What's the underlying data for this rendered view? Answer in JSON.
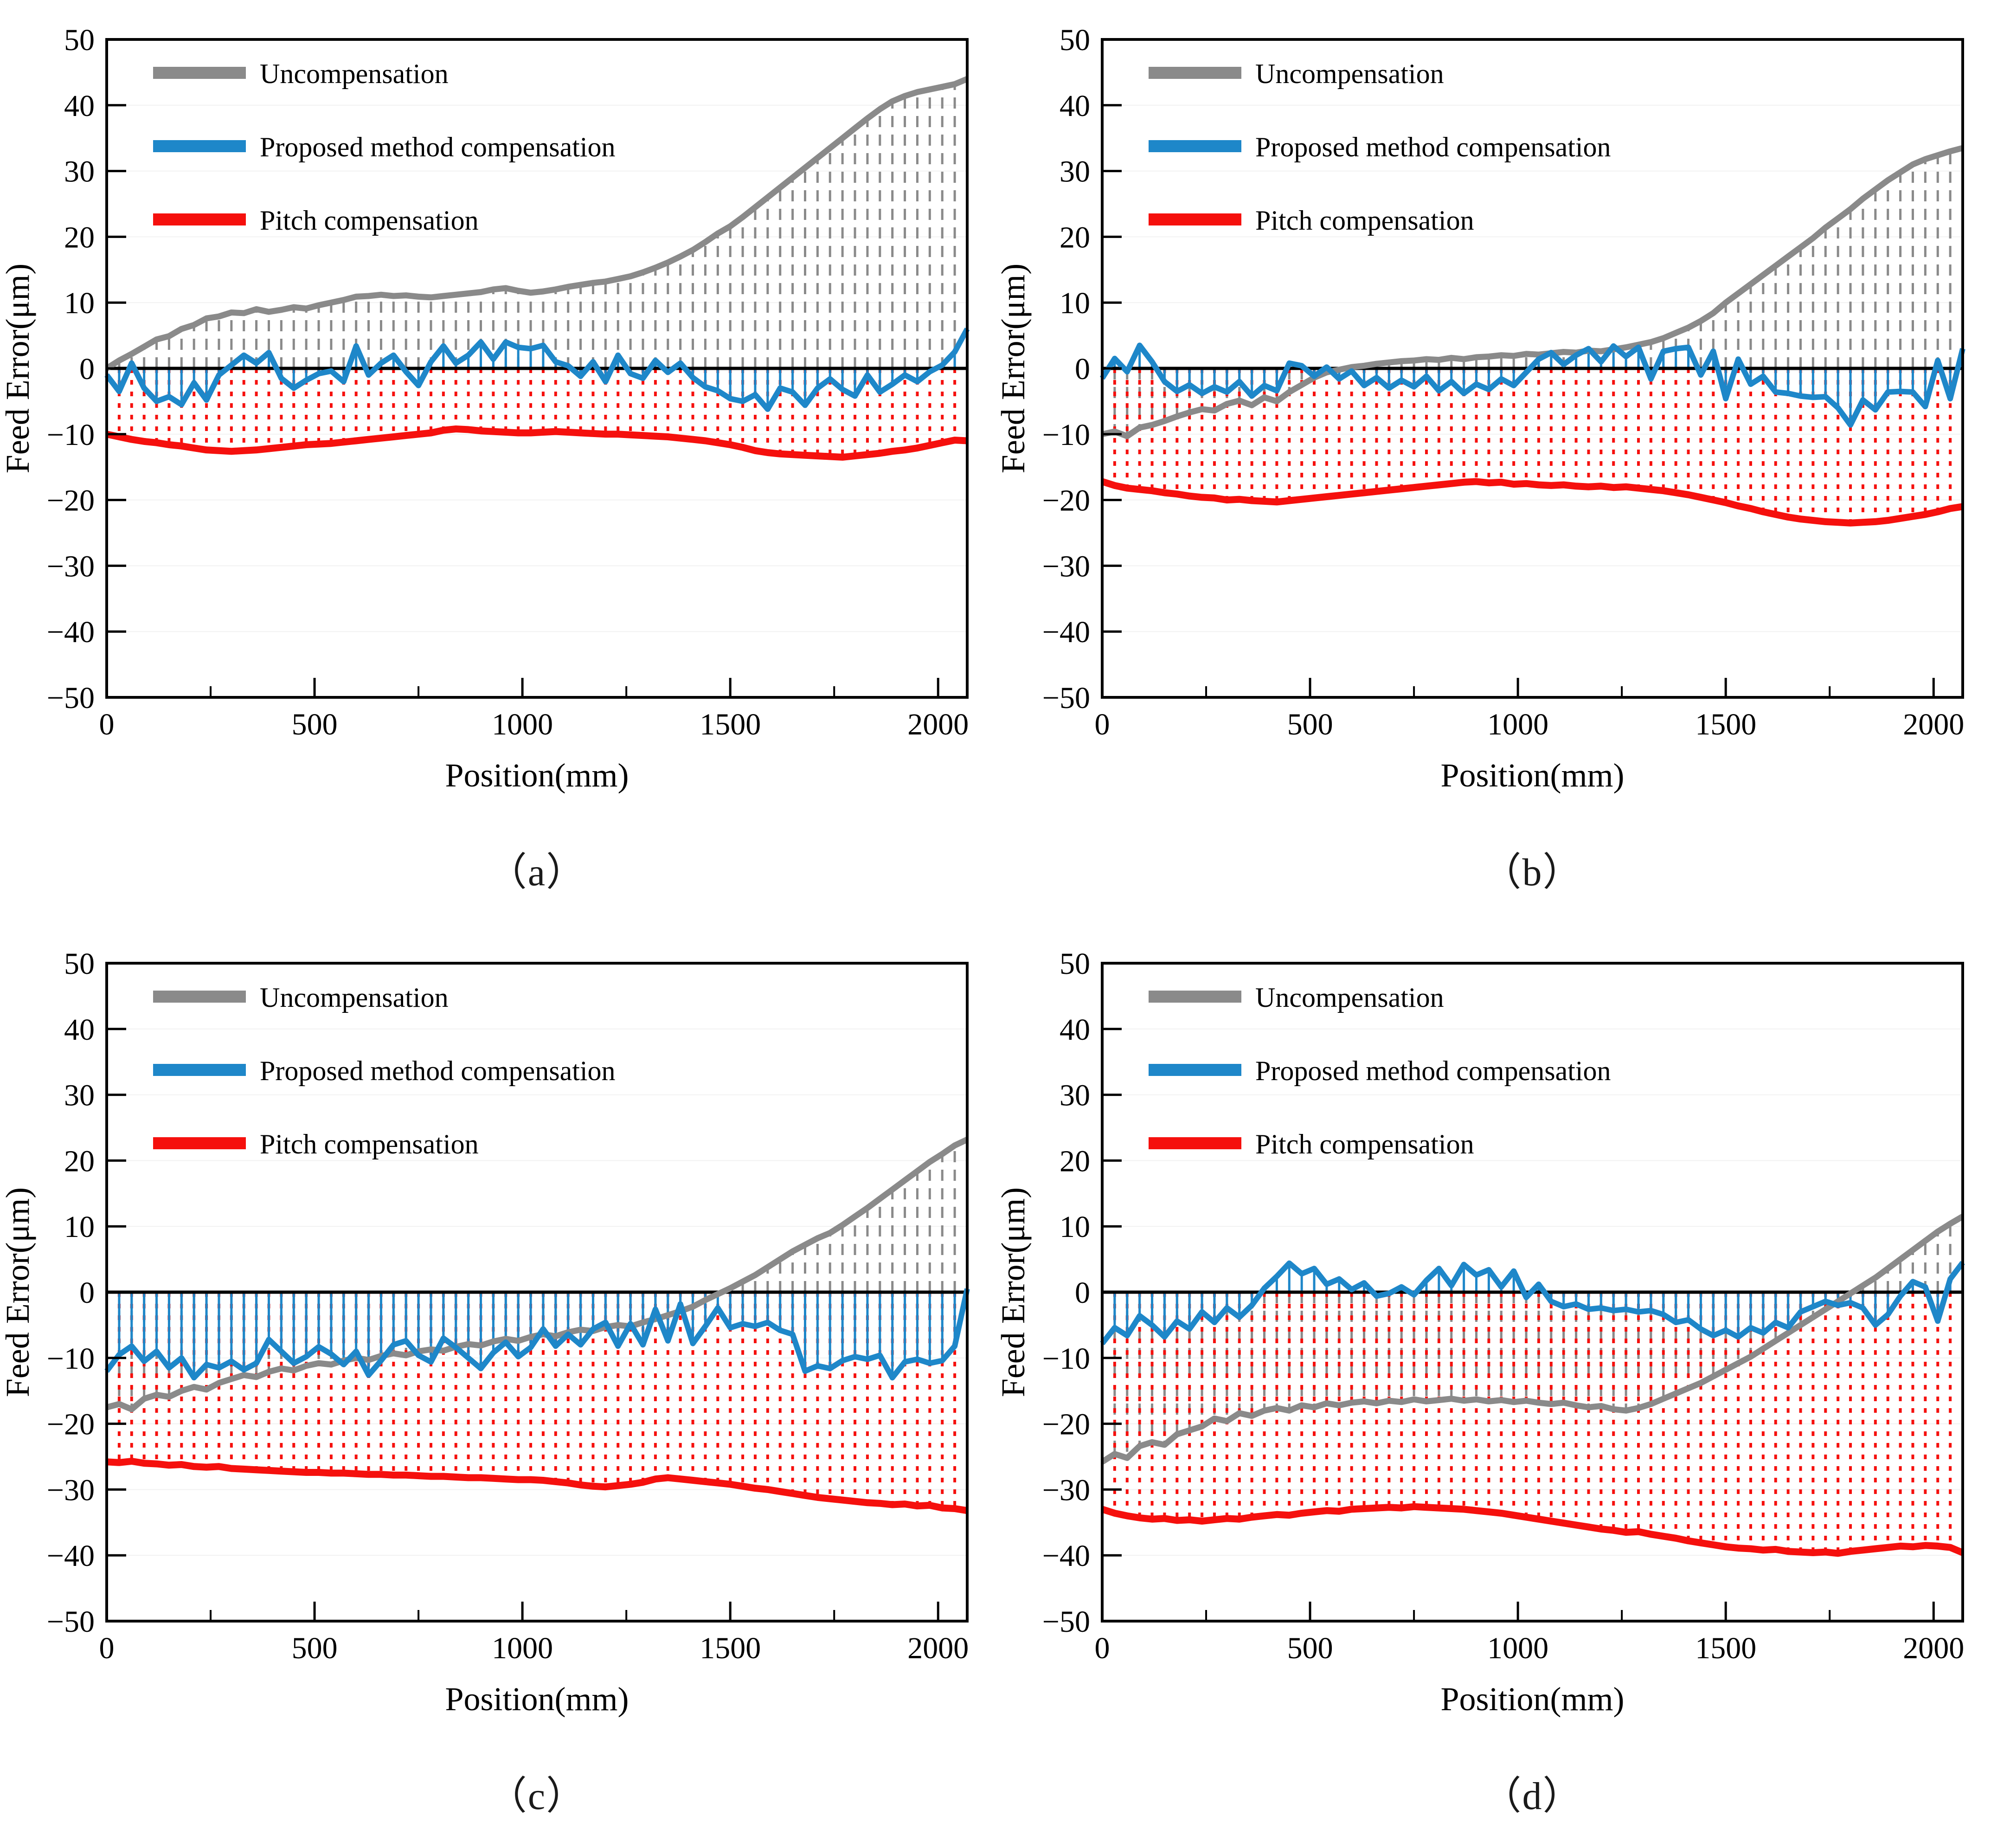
{
  "page": {
    "background": "#ffffff"
  },
  "colors": {
    "uncompensation": "#8A8A8A",
    "proposed": "#1E87C9",
    "pitch": "#F5100D",
    "axis": "#000000",
    "zero_line": "#000000",
    "grid": "#F2F2F2"
  },
  "legend": [
    {
      "label": "Uncompensation",
      "series": "uncompensation"
    },
    {
      "label": "Proposed method compensation",
      "series": "proposed"
    },
    {
      "label": "Pitch compensation",
      "series": "pitch"
    }
  ],
  "axes": {
    "xlabel": "Position(mm)",
    "ylabel": "Feed Error(μm)",
    "xlim": [
      0,
      2070
    ],
    "ylim": [
      -50,
      50
    ],
    "xticks": [
      0,
      500,
      1000,
      1500,
      2000
    ],
    "xminorticks": [
      250,
      750,
      1250,
      1750
    ],
    "yticks": [
      -50,
      -40,
      -30,
      -20,
      -10,
      0,
      10,
      20,
      30,
      40,
      50
    ],
    "grid": "faint-horizontal",
    "legend_position": "top-left-inside"
  },
  "x_mm": [
    0,
    30,
    60,
    90,
    120,
    150,
    180,
    210,
    240,
    270,
    300,
    330,
    360,
    390,
    420,
    450,
    480,
    510,
    540,
    570,
    600,
    630,
    660,
    690,
    720,
    750,
    780,
    810,
    840,
    870,
    900,
    930,
    960,
    990,
    1020,
    1050,
    1080,
    1110,
    1140,
    1170,
    1200,
    1230,
    1260,
    1290,
    1320,
    1350,
    1380,
    1410,
    1440,
    1470,
    1500,
    1530,
    1560,
    1590,
    1620,
    1650,
    1680,
    1710,
    1740,
    1770,
    1800,
    1830,
    1860,
    1890,
    1920,
    1950,
    1980,
    2010,
    2040,
    2070
  ],
  "chart_data": [
    {
      "type": "line",
      "caption": "（a）",
      "drop_lines": {
        "uncompensation": "dashed",
        "proposed": "solid",
        "pitch": "dotted"
      },
      "series": {
        "uncompensation": [
          0,
          1.2,
          2.2,
          3.3,
          4.4,
          4.9,
          6,
          6.6,
          7.6,
          7.9,
          8.5,
          8.4,
          9,
          8.6,
          8.9,
          9.3,
          9.1,
          9.6,
          10,
          10.4,
          10.9,
          11,
          11.2,
          11,
          11.1,
          10.9,
          10.8,
          11,
          11.2,
          11.4,
          11.6,
          12,
          12.2,
          11.8,
          11.5,
          11.7,
          12,
          12.4,
          12.7,
          13,
          13.2,
          13.6,
          14,
          14.6,
          15.3,
          16.1,
          17,
          18,
          19.2,
          20.5,
          21.6,
          23,
          24.5,
          26,
          27.5,
          29,
          30.5,
          32,
          33.5,
          35,
          36.5,
          38,
          39.4,
          40.6,
          41.4,
          42,
          42.4,
          42.8,
          43.2,
          44
        ],
        "proposed": [
          -1,
          -3.5,
          0.8,
          -3,
          -5,
          -4.3,
          -5.5,
          -2.2,
          -4.8,
          -1,
          0.5,
          2,
          0.8,
          2.4,
          -1.5,
          -3,
          -1.8,
          -0.8,
          -0.4,
          -2,
          3.4,
          -1,
          0.8,
          2,
          -0.5,
          -2.6,
          1,
          3.4,
          0.8,
          2,
          4,
          1.4,
          4,
          3.2,
          3,
          3.5,
          1,
          0.4,
          -1.2,
          1,
          -2,
          2,
          -0.8,
          -1.5,
          1.2,
          -0.6,
          0.8,
          -1.4,
          -2.8,
          -3.4,
          -4.6,
          -5,
          -4,
          -6.2,
          -3,
          -3.6,
          -5.6,
          -3,
          -1.6,
          -3.2,
          -4.2,
          -1,
          -3.6,
          -2.4,
          -1,
          -2,
          -0.5,
          0.5,
          2.5,
          6
        ],
        "pitch": [
          -10,
          -10.4,
          -10.8,
          -11.1,
          -11.3,
          -11.6,
          -11.8,
          -12.1,
          -12.4,
          -12.5,
          -12.6,
          -12.5,
          -12.4,
          -12.2,
          -12,
          -11.8,
          -11.6,
          -11.5,
          -11.4,
          -11.2,
          -11,
          -10.8,
          -10.6,
          -10.4,
          -10.2,
          -10,
          -9.8,
          -9.4,
          -9.2,
          -9.3,
          -9.5,
          -9.6,
          -9.7,
          -9.8,
          -9.8,
          -9.7,
          -9.6,
          -9.7,
          -9.8,
          -9.9,
          -10,
          -10,
          -10.1,
          -10.2,
          -10.3,
          -10.4,
          -10.6,
          -10.8,
          -11,
          -11.3,
          -11.6,
          -12,
          -12.5,
          -12.8,
          -13,
          -13.1,
          -13.2,
          -13.3,
          -13.4,
          -13.5,
          -13.3,
          -13.1,
          -12.9,
          -12.6,
          -12.4,
          -12.1,
          -11.7,
          -11.3,
          -10.9,
          -11
        ]
      }
    },
    {
      "type": "line",
      "caption": "（b）",
      "drop_lines": {
        "uncompensation": "dashed",
        "proposed": "solid",
        "pitch": "dotted"
      },
      "series": {
        "uncompensation": [
          -10,
          -9.6,
          -10.3,
          -9,
          -8.6,
          -8,
          -7.3,
          -6.7,
          -6.2,
          -6.4,
          -5.4,
          -4.9,
          -5.6,
          -4.4,
          -5,
          -3.6,
          -2.5,
          -1.4,
          -0.6,
          -0.2,
          0.2,
          0.4,
          0.7,
          0.9,
          1.1,
          1.2,
          1.4,
          1.3,
          1.6,
          1.4,
          1.7,
          1.8,
          2,
          1.9,
          2.2,
          2.1,
          2.3,
          2.5,
          2.4,
          2.7,
          2.6,
          2.9,
          3.2,
          3.6,
          4,
          4.6,
          5.4,
          6.2,
          7.2,
          8.4,
          10,
          11.4,
          12.8,
          14.2,
          15.6,
          17,
          18.4,
          19.8,
          21.4,
          22.8,
          24.2,
          25.8,
          27.2,
          28.6,
          29.8,
          31,
          31.8,
          32.4,
          33,
          33.5
        ],
        "proposed": [
          -1.5,
          1.5,
          -0.5,
          3.5,
          1,
          -2,
          -3.5,
          -2.5,
          -3.8,
          -2.8,
          -3.6,
          -2,
          -4.2,
          -2.6,
          -3.4,
          0.8,
          0.4,
          -1.2,
          0.2,
          -1.6,
          -0.4,
          -2.6,
          -1.4,
          -3,
          -1.8,
          -2.8,
          -1.2,
          -3.4,
          -2,
          -3.8,
          -2.4,
          -3.2,
          -1.6,
          -2.6,
          -0.6,
          1.4,
          2.4,
          0.6,
          2,
          3,
          1,
          3.4,
          1.8,
          3.2,
          -1.6,
          2.6,
          3,
          3.2,
          -1,
          2.6,
          -4.6,
          1.4,
          -2.4,
          -1.2,
          -3.6,
          -3.8,
          -4.2,
          -4.4,
          -4.3,
          -6,
          -8.6,
          -4.8,
          -6.3,
          -3.6,
          -3.5,
          -3.6,
          -5.8,
          1.2,
          -4.6,
          3
        ],
        "pitch": [
          -17.2,
          -17.8,
          -18.2,
          -18.4,
          -18.6,
          -18.9,
          -19.1,
          -19.4,
          -19.6,
          -19.7,
          -20,
          -19.9,
          -20.1,
          -20.2,
          -20.3,
          -20.1,
          -19.9,
          -19.7,
          -19.5,
          -19.3,
          -19.1,
          -18.9,
          -18.7,
          -18.5,
          -18.3,
          -18.1,
          -17.9,
          -17.7,
          -17.5,
          -17.3,
          -17.2,
          -17.4,
          -17.3,
          -17.6,
          -17.5,
          -17.7,
          -17.8,
          -17.7,
          -17.9,
          -18,
          -17.9,
          -18.1,
          -18,
          -18.2,
          -18.4,
          -18.6,
          -18.9,
          -19.2,
          -19.6,
          -20,
          -20.4,
          -20.9,
          -21.3,
          -21.8,
          -22.2,
          -22.6,
          -22.9,
          -23.1,
          -23.3,
          -23.4,
          -23.5,
          -23.4,
          -23.3,
          -23.1,
          -22.8,
          -22.5,
          -22.2,
          -21.8,
          -21.3,
          -21
        ]
      }
    },
    {
      "type": "line",
      "caption": "（c）",
      "drop_lines": {
        "uncompensation": "dashed",
        "proposed": "solid",
        "pitch": "dotted"
      },
      "series": {
        "uncompensation": [
          -17.5,
          -17,
          -17.8,
          -16.2,
          -15.6,
          -15.9,
          -15,
          -14.4,
          -14.8,
          -13.8,
          -13.2,
          -12.6,
          -12.9,
          -12.1,
          -11.6,
          -11.9,
          -11.2,
          -10.8,
          -11,
          -10.4,
          -10,
          -10.3,
          -9.7,
          -9.3,
          -9.6,
          -9,
          -8.7,
          -8.9,
          -8.3,
          -7.9,
          -8.1,
          -7.5,
          -7.1,
          -7.4,
          -6.8,
          -6.4,
          -6.7,
          -6.1,
          -5.7,
          -5.9,
          -5.3,
          -5,
          -5.2,
          -4.6,
          -4.1,
          -3.5,
          -2.9,
          -2.2,
          -1.2,
          -0.3,
          0.6,
          1.6,
          2.6,
          3.8,
          5,
          6.2,
          7.2,
          8.2,
          9,
          10.2,
          11.5,
          12.8,
          14.2,
          15.6,
          17,
          18.4,
          19.8,
          21,
          22.3,
          23.2
        ],
        "proposed": [
          -12,
          -9.5,
          -8.2,
          -10.5,
          -9,
          -11.5,
          -10,
          -13,
          -11,
          -11.5,
          -10.5,
          -11.8,
          -10.8,
          -7.2,
          -9,
          -10.8,
          -9.8,
          -8.3,
          -9.4,
          -11,
          -9,
          -12.6,
          -10.4,
          -8,
          -7.4,
          -9.6,
          -10.6,
          -7,
          -8.4,
          -10,
          -11.6,
          -9.2,
          -7.6,
          -9.8,
          -8.4,
          -5.6,
          -8.2,
          -6.4,
          -8,
          -5.6,
          -4.6,
          -8.2,
          -4.8,
          -8,
          -2.6,
          -7.4,
          -1.8,
          -7.8,
          -5.2,
          -2.4,
          -5.4,
          -4.8,
          -5.2,
          -4.6,
          -5.8,
          -6.4,
          -12,
          -11.2,
          -11.6,
          -10.4,
          -9.8,
          -10.2,
          -9.6,
          -13,
          -10.6,
          -10.2,
          -10.8,
          -10.4,
          -8.2,
          0.5
        ],
        "pitch": [
          -25.8,
          -25.9,
          -25.7,
          -26,
          -26.1,
          -26.3,
          -26.2,
          -26.5,
          -26.6,
          -26.5,
          -26.8,
          -26.9,
          -27,
          -27.1,
          -27.2,
          -27.3,
          -27.4,
          -27.4,
          -27.5,
          -27.5,
          -27.6,
          -27.7,
          -27.7,
          -27.8,
          -27.8,
          -27.9,
          -28,
          -28,
          -28.1,
          -28.2,
          -28.2,
          -28.3,
          -28.4,
          -28.5,
          -28.5,
          -28.6,
          -28.8,
          -29,
          -29.3,
          -29.5,
          -29.6,
          -29.4,
          -29.2,
          -28.9,
          -28.4,
          -28.2,
          -28.4,
          -28.6,
          -28.8,
          -29,
          -29.2,
          -29.5,
          -29.8,
          -30,
          -30.3,
          -30.6,
          -30.9,
          -31.2,
          -31.4,
          -31.6,
          -31.8,
          -32,
          -32.1,
          -32.3,
          -32.2,
          -32.5,
          -32.4,
          -32.8,
          -32.9,
          -33.2
        ]
      }
    },
    {
      "type": "line",
      "caption": "（d）",
      "drop_lines": {
        "uncompensation": "dashed",
        "proposed": "solid",
        "pitch": "dotted"
      },
      "series": {
        "uncompensation": [
          -25.8,
          -24.6,
          -25.2,
          -23.4,
          -22.8,
          -23.2,
          -21.6,
          -21,
          -20.4,
          -19.2,
          -19.6,
          -18.4,
          -18.8,
          -18,
          -17.6,
          -18,
          -17.2,
          -17.5,
          -16.9,
          -17.2,
          -16.8,
          -16.6,
          -16.9,
          -16.5,
          -16.7,
          -16.3,
          -16.6,
          -16.4,
          -16.2,
          -16.5,
          -16.3,
          -16.6,
          -16.4,
          -16.7,
          -16.5,
          -16.8,
          -17,
          -16.8,
          -17.2,
          -17.5,
          -17.3,
          -17.8,
          -18,
          -17.6,
          -17,
          -16.2,
          -15.4,
          -14.6,
          -13.8,
          -12.8,
          -11.8,
          -10.8,
          -9.8,
          -8.6,
          -7.4,
          -6.2,
          -5,
          -3.8,
          -2.6,
          -1.4,
          -0.2,
          1,
          2.2,
          3.6,
          5,
          6.4,
          7.8,
          9.2,
          10.4,
          11.5
        ],
        "proposed": [
          -7.8,
          -5.4,
          -6.6,
          -3.6,
          -5,
          -6.8,
          -4.4,
          -5.6,
          -3,
          -4.6,
          -2.4,
          -3.8,
          -2,
          0.6,
          2.4,
          4.4,
          2.8,
          3.6,
          1.2,
          2,
          0.4,
          1.4,
          -0.6,
          -0.2,
          0.8,
          -0.4,
          1.8,
          3.6,
          1,
          4.2,
          2.6,
          3.4,
          0.8,
          3.2,
          -0.8,
          1.2,
          -1.4,
          -2.2,
          -1.8,
          -2.6,
          -2.4,
          -2.8,
          -2.6,
          -3,
          -2.8,
          -3.4,
          -4.6,
          -4.2,
          -5.6,
          -6.6,
          -5.8,
          -6.8,
          -5.4,
          -6.2,
          -4.6,
          -5.4,
          -3,
          -2.2,
          -1.4,
          -2,
          -1.6,
          -2.4,
          -5,
          -3.4,
          -0.6,
          1.6,
          0.8,
          -4.4,
          2,
          4.5
        ],
        "pitch": [
          -33,
          -33.6,
          -34,
          -34.3,
          -34.5,
          -34.4,
          -34.7,
          -34.6,
          -34.8,
          -34.6,
          -34.4,
          -34.5,
          -34.2,
          -34,
          -33.8,
          -33.9,
          -33.6,
          -33.4,
          -33.2,
          -33.3,
          -33,
          -32.9,
          -32.8,
          -32.7,
          -32.8,
          -32.6,
          -32.7,
          -32.8,
          -32.9,
          -33,
          -33.2,
          -33.4,
          -33.6,
          -33.9,
          -34.2,
          -34.5,
          -34.8,
          -35.1,
          -35.4,
          -35.7,
          -36,
          -36.2,
          -36.5,
          -36.4,
          -36.8,
          -37.1,
          -37.4,
          -37.8,
          -38.1,
          -38.4,
          -38.7,
          -38.9,
          -39,
          -39.2,
          -39.1,
          -39.4,
          -39.5,
          -39.6,
          -39.5,
          -39.7,
          -39.4,
          -39.2,
          -39,
          -38.8,
          -38.6,
          -38.7,
          -38.5,
          -38.6,
          -38.8,
          -39.6
        ]
      }
    }
  ]
}
